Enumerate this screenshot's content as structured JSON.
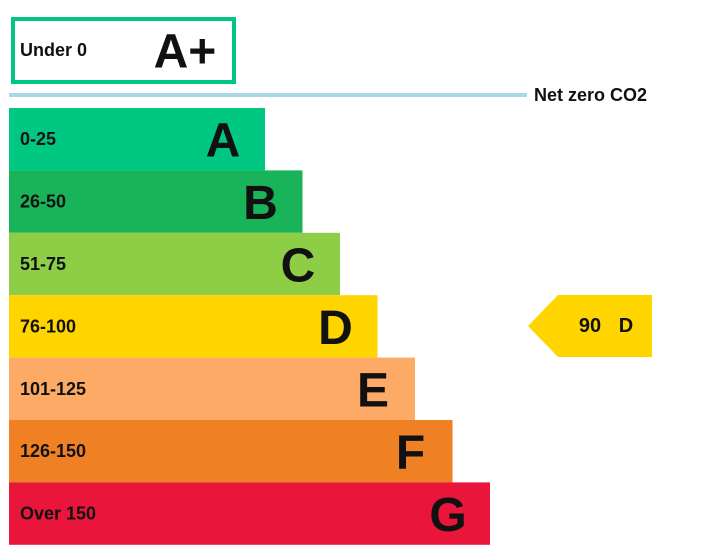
{
  "top_band": {
    "range": "Under 0",
    "grade": "A+",
    "color": "#00c781"
  },
  "net_zero": {
    "label": "Net zero CO2",
    "color": "#a8d8e8"
  },
  "bands": [
    {
      "range": "0-25",
      "grade": "A",
      "color": "#00c781"
    },
    {
      "range": "26-50",
      "grade": "B",
      "color": "#19b459"
    },
    {
      "range": "51-75",
      "grade": "C",
      "color": "#8dce46"
    },
    {
      "range": "76-100",
      "grade": "D",
      "color": "#ffd500"
    },
    {
      "range": "101-125",
      "grade": "E",
      "color": "#fcaa65"
    },
    {
      "range": "126-150",
      "grade": "F",
      "color": "#ef8023"
    },
    {
      "range": "Over 150",
      "grade": "G",
      "color": "#e9153b"
    }
  ],
  "current": {
    "score": 90,
    "grade": "D",
    "color": "#ffd500"
  }
}
